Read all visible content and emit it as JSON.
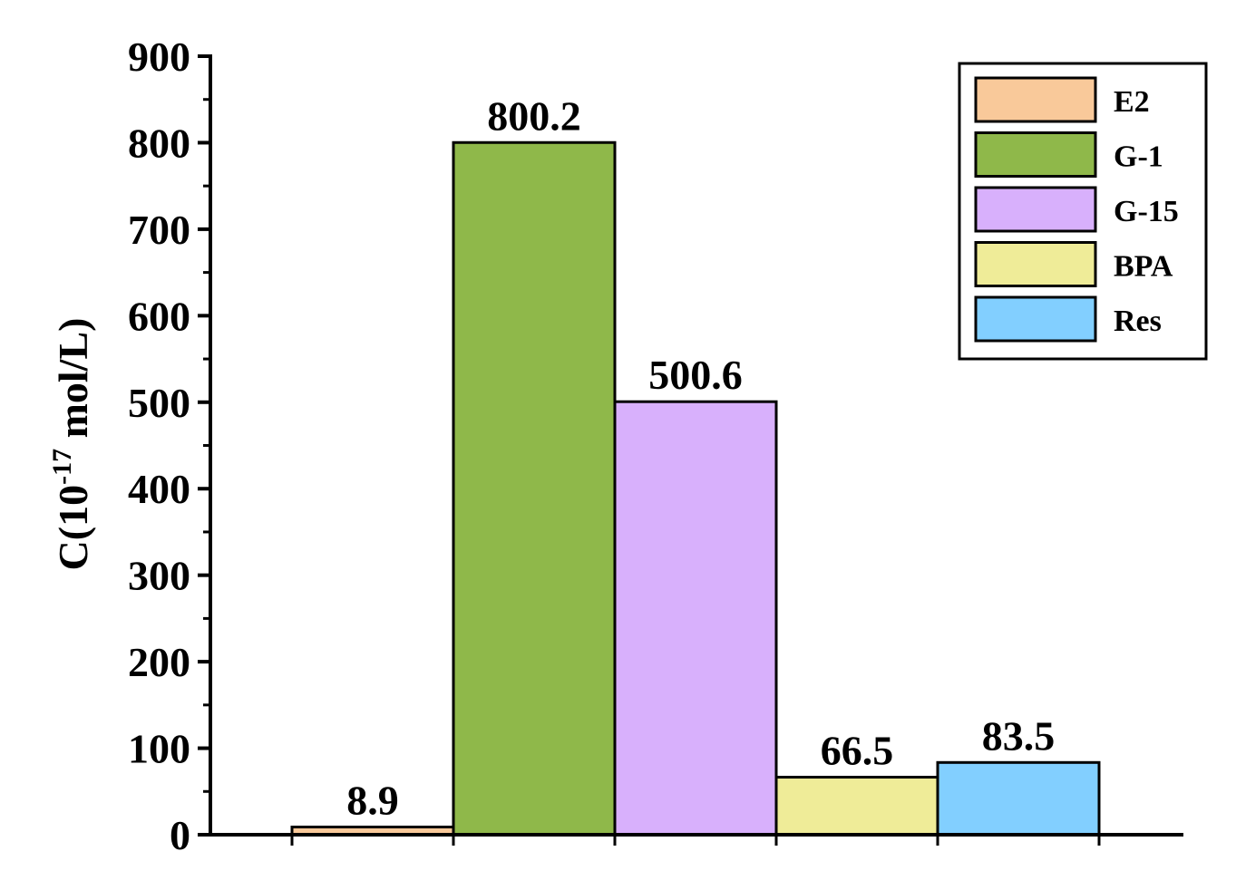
{
  "chart_data": {
    "type": "bar",
    "categories": [
      "E2",
      "G-1",
      "G-15",
      "BPA",
      "Res"
    ],
    "values": [
      8.9,
      800.2,
      500.6,
      66.5,
      83.5
    ],
    "data_labels": [
      "8.9",
      "800.2",
      "500.6",
      "66.5",
      "83.5"
    ],
    "colors": [
      "#F9C99A",
      "#8FB84A",
      "#D8B0FC",
      "#EFEC98",
      "#82CFFF"
    ],
    "ylabel": {
      "prefix": "C(10",
      "superscript": "-17",
      "suffix": " mol/L)"
    },
    "ylim": [
      0,
      900
    ],
    "yticks": [
      0,
      100,
      200,
      300,
      400,
      500,
      600,
      700,
      800,
      900
    ],
    "ytick_labels": [
      "0",
      "100",
      "200",
      "300",
      "400",
      "500",
      "600",
      "700",
      "800",
      "900"
    ],
    "legend": {
      "entries": [
        "E2",
        "G-1",
        "G-15",
        "BPA",
        "Res"
      ],
      "placement": "top-right"
    },
    "grid": false
  }
}
